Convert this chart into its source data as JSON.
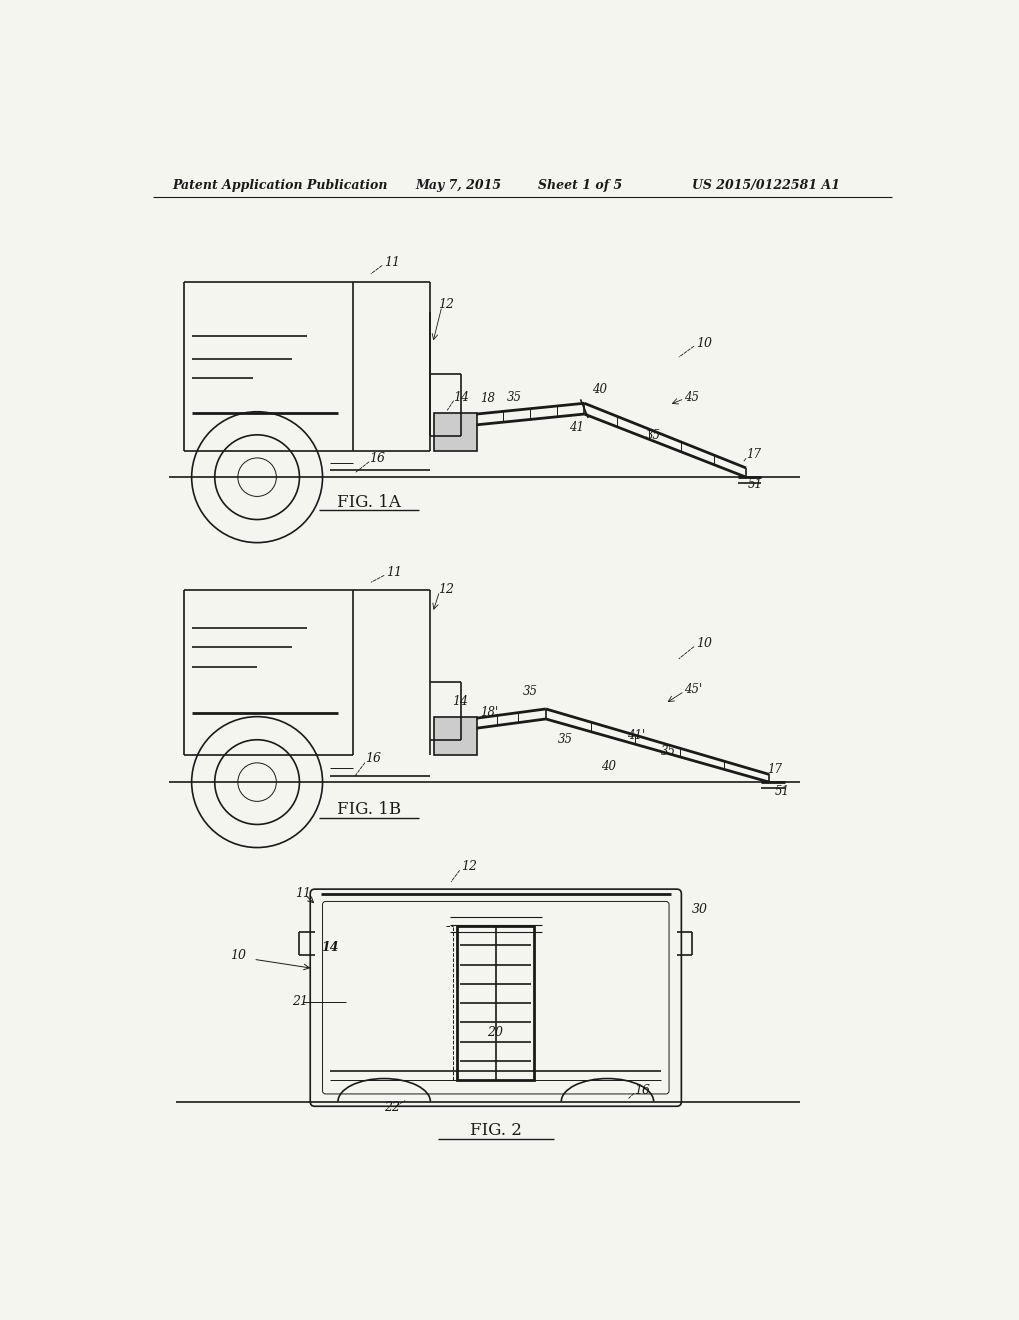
{
  "title_line1": "Patent Application Publication",
  "title_date": "May 7, 2015",
  "title_sheet": "Sheet 1 of 5",
  "title_patent": "US 2015/0122581 A1",
  "fig1a_label": "FIG. 1A",
  "fig1b_label": "FIG. 1B",
  "fig2_label": "FIG. 2",
  "bg_color": "#f5f5f0",
  "line_color": "#1a1a1a",
  "lw_thin": 0.7,
  "lw_med": 1.2,
  "lw_thick": 2.0
}
